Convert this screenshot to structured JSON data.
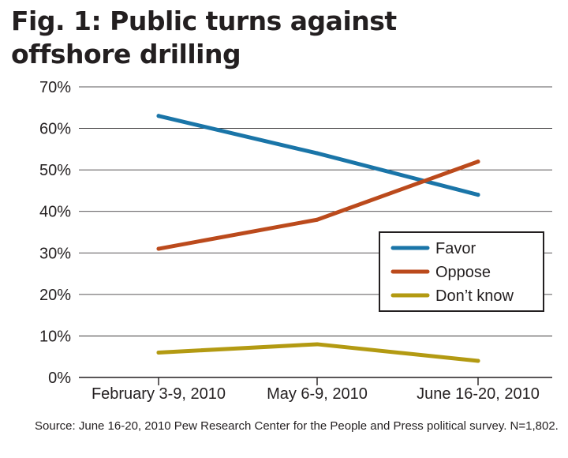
{
  "chart_data": {
    "type": "line",
    "title": "Fig. 1: Public turns against offshore drilling",
    "categories": [
      "February 3-9, 2010",
      "May 6-9, 2010",
      "June 16-20, 2010"
    ],
    "series": [
      {
        "name": "Favor",
        "values": [
          63,
          54,
          44
        ],
        "color": "#1a75a8"
      },
      {
        "name": "Oppose",
        "values": [
          31,
          38,
          52
        ],
        "color": "#bb4a1c"
      },
      {
        "name": "Don’t know",
        "values": [
          6,
          8,
          4
        ],
        "color": "#b39a12"
      }
    ],
    "y_ticks": [
      "0%",
      "10%",
      "20%",
      "30%",
      "40%",
      "50%",
      "60%",
      "70%"
    ],
    "ylim": [
      0,
      70
    ],
    "grid": true,
    "legend_position": "right",
    "source": "Source: June 16-20, 2010 Pew Research Center for the People and Press political survey. N=1,802."
  }
}
